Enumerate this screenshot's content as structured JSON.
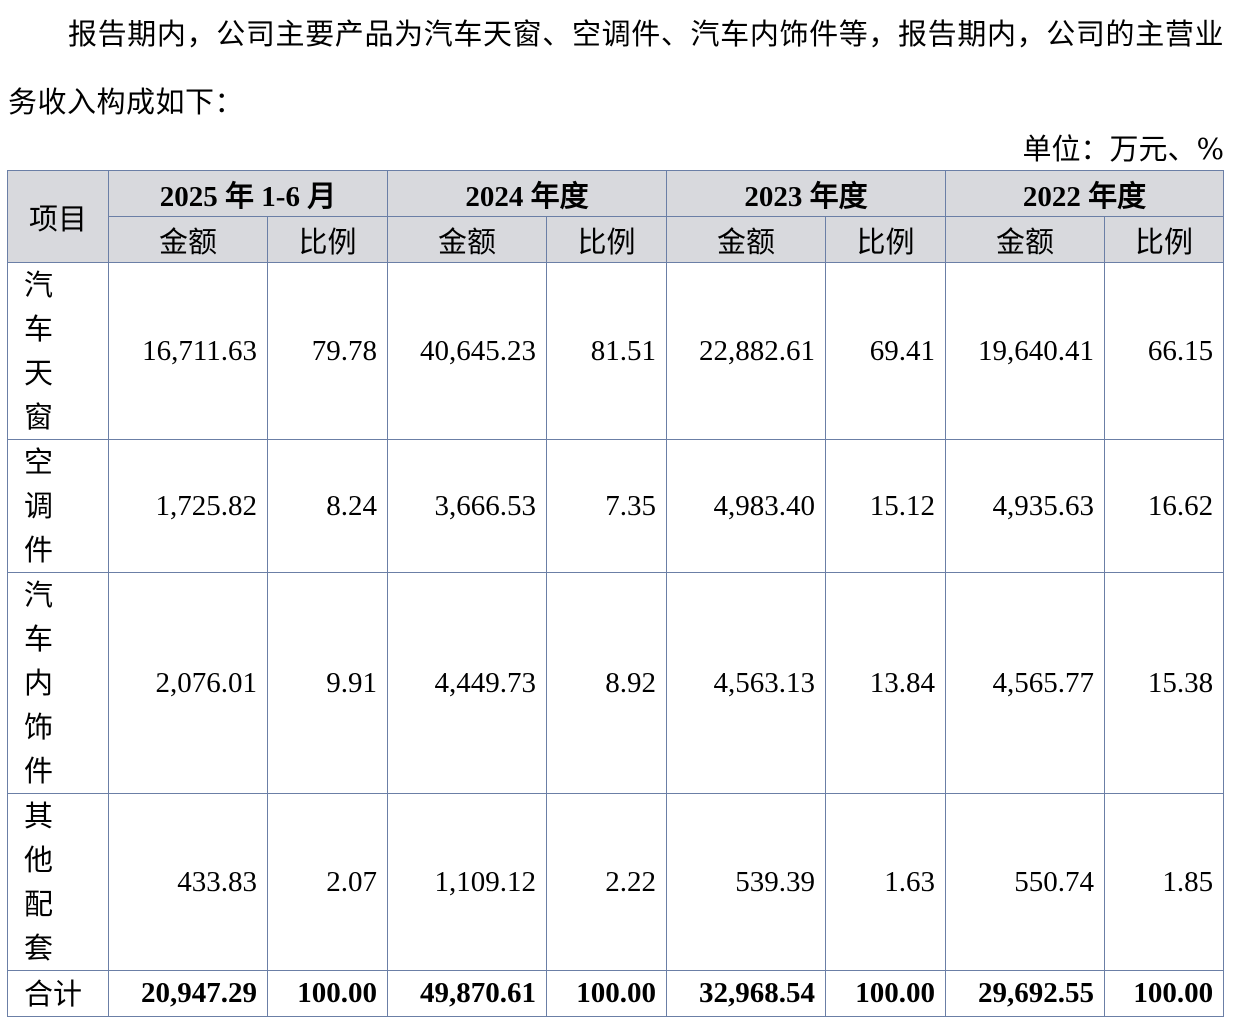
{
  "paragraph": "报告期内，公司主要产品为汽车天窗、空调件、汽车内饰件等，报告期内，公司的主营业务收入构成如下：",
  "unit": "单位：万元、%",
  "table": {
    "item_header": "项目",
    "periods": [
      "2025 年 1-6 月",
      "2024 年度",
      "2023 年度",
      "2022 年度"
    ],
    "sub_headers": [
      "金额",
      "比例"
    ],
    "rows": [
      {
        "item": "汽车天窗",
        "cells": [
          "16,711.63",
          "79.78",
          "40,645.23",
          "81.51",
          "22,882.61",
          "69.41",
          "19,640.41",
          "66.15"
        ]
      },
      {
        "item": "空调件",
        "cells": [
          "1,725.82",
          "8.24",
          "3,666.53",
          "7.35",
          "4,983.40",
          "15.12",
          "4,935.63",
          "16.62"
        ]
      },
      {
        "item": "汽车内饰件",
        "cells": [
          "2,076.01",
          "9.91",
          "4,449.73",
          "8.92",
          "4,563.13",
          "13.84",
          "4,565.77",
          "15.38"
        ]
      },
      {
        "item": "其他配套",
        "cells": [
          "433.83",
          "2.07",
          "1,109.12",
          "2.22",
          "539.39",
          "1.63",
          "550.74",
          "1.85"
        ]
      }
    ],
    "total": {
      "item": "合计",
      "cells": [
        "20,947.29",
        "100.00",
        "49,870.61",
        "100.00",
        "32,968.54",
        "100.00",
        "29,692.55",
        "100.00"
      ]
    }
  }
}
